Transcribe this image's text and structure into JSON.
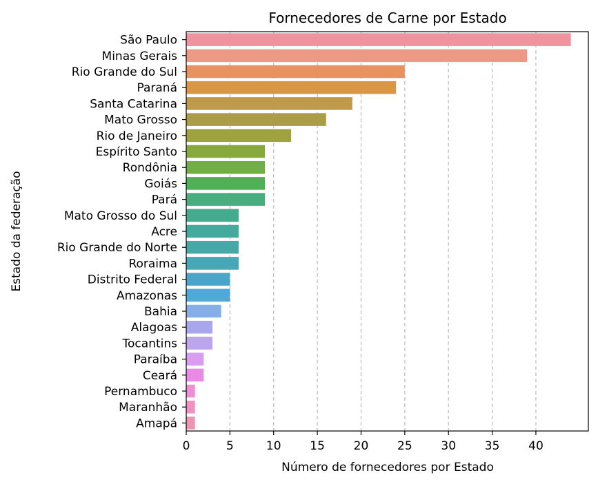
{
  "chart_data": {
    "type": "bar",
    "orientation": "horizontal",
    "title": "Fornecedores de Carne por Estado",
    "xlabel": "Número de fornecedores por Estado",
    "ylabel": "Estado da federação",
    "xlim": [
      0,
      46
    ],
    "xticks": [
      "0",
      "5",
      "10",
      "15",
      "20",
      "25",
      "30",
      "35",
      "40"
    ],
    "grid": "vertical dashed",
    "categories": [
      "São Paulo",
      "Minas Gerais",
      "Rio Grande do Sul",
      "Paraná",
      "Santa Catarina",
      "Mato Grosso",
      "Rio de Janeiro",
      "Espírito Santo",
      "Rondônia",
      "Goiás",
      "Pará",
      "Mato Grosso do Sul",
      "Acre",
      "Rio Grande do Norte",
      "Roraima",
      "Distrito Federal",
      "Amazonas",
      "Bahia",
      "Alagoas",
      "Tocantins",
      "Paraíba",
      "Ceará",
      "Pernambuco",
      "Maranhão",
      "Amapá"
    ],
    "values": [
      44,
      39,
      25,
      24,
      19,
      16,
      12,
      9,
      9,
      9,
      9,
      6,
      6,
      6,
      6,
      5,
      5,
      4,
      3,
      3,
      2,
      2,
      1,
      1,
      1
    ],
    "colors": [
      "#ef949e",
      "#ec9a86",
      "#e8935f",
      "#d99746",
      "#c0994a",
      "#ab9c46",
      "#9fa33f",
      "#88a93f",
      "#72ad45",
      "#4fb058",
      "#48ae7f",
      "#45ab8f",
      "#44aa9b",
      "#46a9a7",
      "#47a7b6",
      "#4aa5c8",
      "#4ea8d8",
      "#86aee6",
      "#a8a6ec",
      "#bba5ee",
      "#d89cf0",
      "#e98ae6",
      "#ec8fd4",
      "#ef92c1",
      "#ee95b4"
    ]
  }
}
